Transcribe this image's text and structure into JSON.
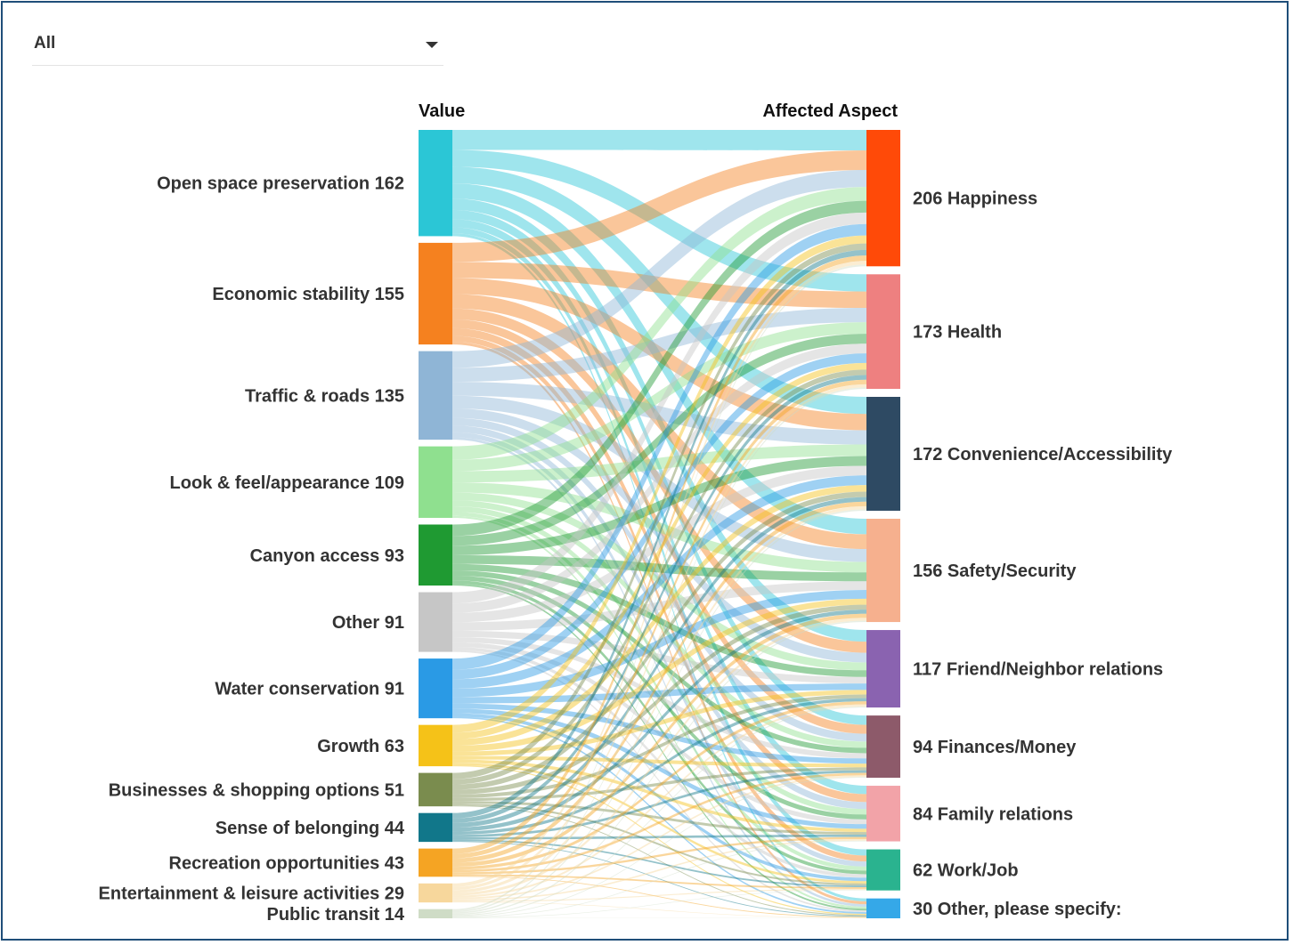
{
  "filter": {
    "selected": "All"
  },
  "chart_data": {
    "type": "sankey",
    "source_header": "Value",
    "target_header": "Affected Aspect",
    "sources": [
      {
        "name": "Open space preservation",
        "value": 162,
        "color": "#2bc6d6"
      },
      {
        "name": "Economic stability",
        "value": 155,
        "color": "#f5811f"
      },
      {
        "name": "Traffic & roads",
        "value": 135,
        "color": "#8fb5d6"
      },
      {
        "name": "Look & feel/appearance",
        "value": 109,
        "color": "#8fe08f"
      },
      {
        "name": "Canyon access",
        "value": 93,
        "color": "#1f9a32"
      },
      {
        "name": "Other",
        "value": 91,
        "color": "#c6c6c6"
      },
      {
        "name": "Water conservation",
        "value": 91,
        "color": "#2a9ae5"
      },
      {
        "name": "Growth",
        "value": 63,
        "color": "#f5c218"
      },
      {
        "name": "Businesses & shopping options",
        "value": 51,
        "color": "#7a8c4e"
      },
      {
        "name": "Sense of belonging",
        "value": 44,
        "color": "#11778a"
      },
      {
        "name": "Recreation opportunities",
        "value": 43,
        "color": "#f5a423"
      },
      {
        "name": "Entertainment & leisure activities",
        "value": 29,
        "color": "#f7d79c"
      },
      {
        "name": "Public transit",
        "value": 14,
        "color": "#cfdcc6"
      }
    ],
    "targets": [
      {
        "name": "Happiness",
        "value": 206,
        "color": "#ff4a08"
      },
      {
        "name": "Health",
        "value": 173,
        "color": "#ee8080"
      },
      {
        "name": "Convenience/Accessibility",
        "value": 172,
        "color": "#2e4a63"
      },
      {
        "name": "Safety/Security",
        "value": 156,
        "color": "#f6b08e"
      },
      {
        "name": "Friend/Neighbor relations",
        "value": 117,
        "color": "#8a63b0"
      },
      {
        "name": "Finances/Money",
        "value": 94,
        "color": "#8d5a6a"
      },
      {
        "name": "Family relations",
        "value": 84,
        "color": "#f2a3a8"
      },
      {
        "name": "Work/Job",
        "value": 62,
        "color": "#2ab38f"
      },
      {
        "name": "Other, please specify:",
        "value": 30,
        "color": "#35a8e8"
      }
    ]
  }
}
